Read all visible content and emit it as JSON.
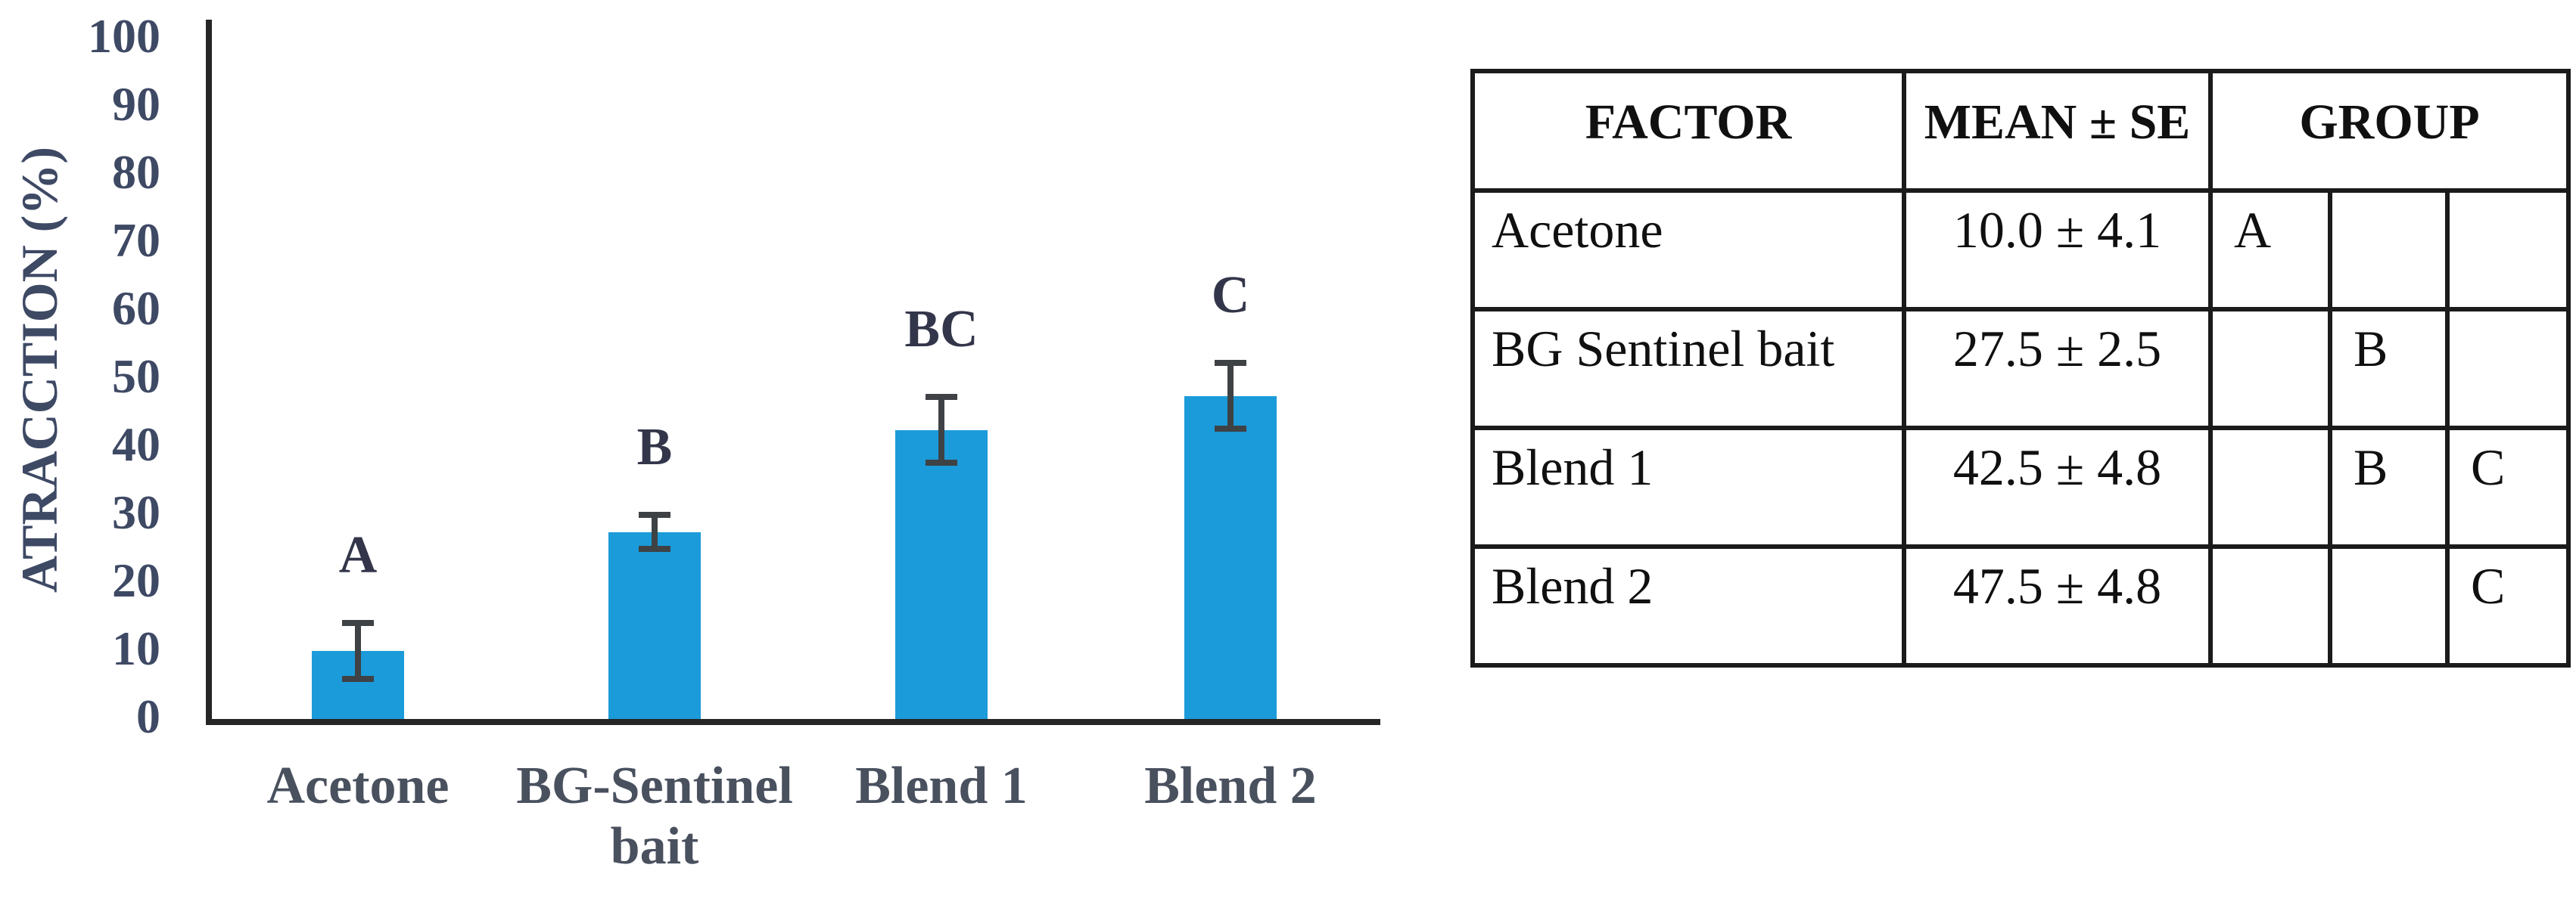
{
  "chart_data": {
    "type": "bar",
    "title": "",
    "xlabel": "",
    "ylabel": "ATRACCTION (%)",
    "ylim": [
      0,
      100
    ],
    "ytick_step": 10,
    "grid": false,
    "legend": null,
    "categories": [
      "Acetone",
      "BG-Sentinel\nbait",
      "Blend 1",
      "Blend 2"
    ],
    "values": [
      10.0,
      27.5,
      42.5,
      47.5
    ],
    "errors": [
      4.1,
      2.5,
      4.8,
      4.8
    ],
    "bar_labels": [
      "A",
      "B",
      "BC",
      "C"
    ],
    "bar_color": "#1B9BD9"
  },
  "table": {
    "headers": [
      "FACTOR",
      "MEAN ± SE",
      "GROUP"
    ],
    "rows": [
      {
        "factor": "Acetone",
        "mean_se": "10.0 ± 4.1",
        "groups": [
          "A",
          "",
          ""
        ]
      },
      {
        "factor": "BG Sentinel bait",
        "mean_se": "27.5 ± 2.5",
        "groups": [
          "",
          "B",
          ""
        ]
      },
      {
        "factor": "Blend 1",
        "mean_se": "42.5 ± 4.8",
        "groups": [
          "",
          "B",
          "C"
        ]
      },
      {
        "factor": "Blend 2",
        "mean_se": "47.5 ± 4.8",
        "groups": [
          "",
          "",
          "C"
        ]
      }
    ]
  },
  "colors": {
    "background": "#FFFFFF",
    "bar": "#1B9BD9",
    "axis_line": "#262626",
    "error_bar": "#3F4245",
    "tick_text": "#3E4964",
    "category_text": "#49505E",
    "letter_text": "#33364A",
    "table_border": "#1B1B1B",
    "table_text": "#101010"
  }
}
